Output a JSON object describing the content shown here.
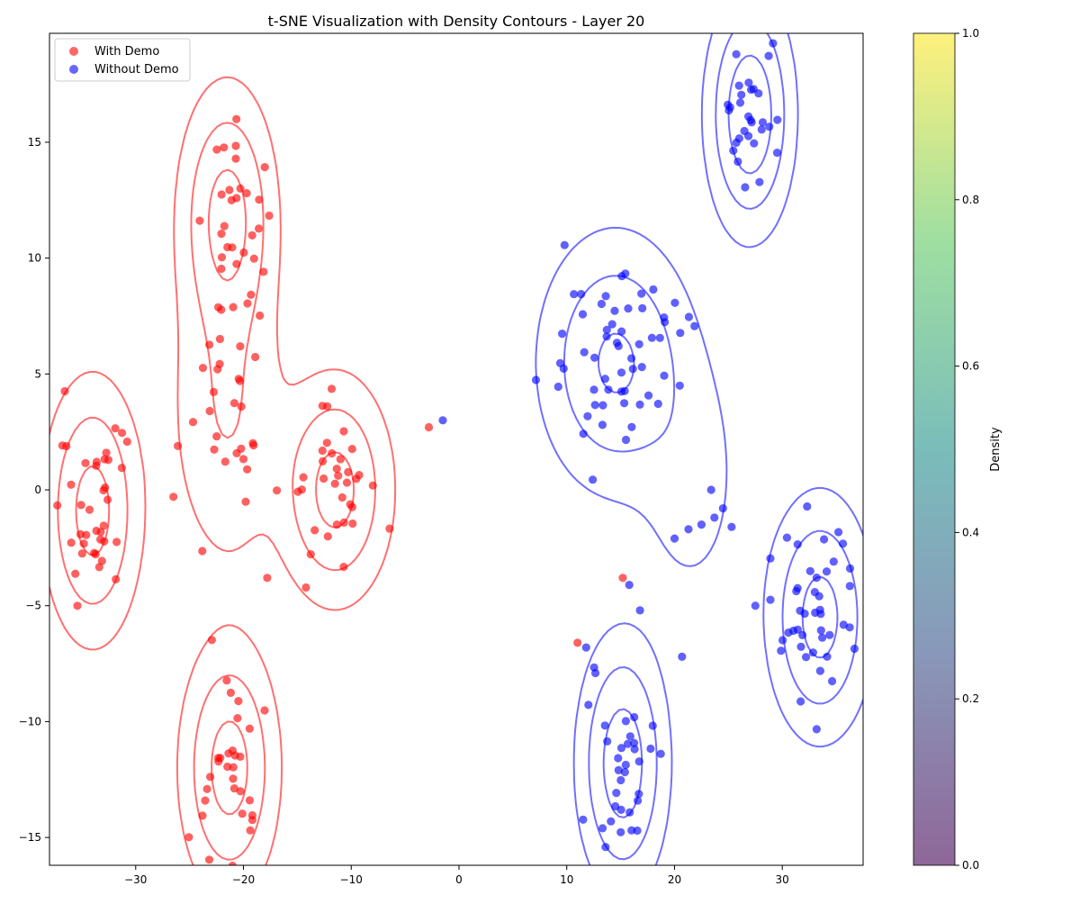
{
  "chart_data": {
    "type": "scatter",
    "title": "t-SNE Visualization with Density Contours - Layer 20",
    "xlabel": "",
    "ylabel": "",
    "xlim": [
      -38,
      37.5
    ],
    "ylim": [
      -16.2,
      19.7
    ],
    "x_ticks": [
      -30,
      -20,
      -10,
      0,
      10,
      20,
      30
    ],
    "y_ticks": [
      -15,
      -10,
      -5,
      0,
      5,
      10,
      15
    ],
    "grid": false,
    "legend": {
      "location": "upper-left"
    },
    "colorbar": {
      "label": "Density",
      "range": [
        0,
        1
      ],
      "ticks": [
        "0.0",
        "0.2",
        "0.4",
        "0.6",
        "0.8",
        "1.0"
      ]
    },
    "series": [
      {
        "name": "With Demo",
        "color": "#ff0000",
        "clusters": [
          {
            "cx": -21.5,
            "cy": 11.8,
            "sx": 1.7,
            "sy": 2.3,
            "n": 32
          },
          {
            "cx": -34.0,
            "cy": -0.9,
            "sx": 1.6,
            "sy": 2.4,
            "n": 38
          },
          {
            "cx": -11.5,
            "cy": 0.0,
            "sx": 2.2,
            "sy": 2.0,
            "n": 34
          },
          {
            "cx": -21.3,
            "cy": -12.0,
            "sx": 1.8,
            "sy": 2.4,
            "n": 32
          },
          {
            "cx": -21.5,
            "cy": 3.8,
            "sx": 2.4,
            "sy": 2.8,
            "n": 28
          }
        ],
        "extra_points": [
          [
            -2.8,
            2.7
          ],
          [
            15.2,
            -3.8
          ],
          [
            11.0,
            -6.6
          ],
          [
            -17.8,
            -3.8
          ],
          [
            -26.5,
            -0.3
          ]
        ]
      },
      {
        "name": "Without Demo",
        "color": "#0000ff",
        "clusters": [
          {
            "cx": 27.0,
            "cy": 16.2,
            "sx": 1.5,
            "sy": 2.0,
            "n": 32
          },
          {
            "cx": 14.5,
            "cy": 5.5,
            "sx": 3.2,
            "sy": 2.2,
            "n": 58
          },
          {
            "cx": 33.5,
            "cy": -5.5,
            "sx": 2.0,
            "sy": 2.1,
            "n": 44
          },
          {
            "cx": 15.2,
            "cy": -11.8,
            "sx": 1.6,
            "sy": 2.2,
            "n": 34
          }
        ],
        "extra_points": [
          [
            -1.5,
            3.0
          ],
          [
            23.4,
            0.0
          ],
          [
            24.5,
            -0.8
          ],
          [
            23.7,
            -1.2
          ],
          [
            22.5,
            -1.5
          ],
          [
            21.3,
            -1.7
          ],
          [
            25.3,
            -1.6
          ],
          [
            20.0,
            -2.1
          ],
          [
            20.7,
            -7.2
          ],
          [
            27.5,
            -5.0
          ],
          [
            16.8,
            -5.2
          ],
          [
            15.8,
            -4.1
          ],
          [
            11.8,
            -6.8
          ]
        ]
      }
    ],
    "contours": [
      {
        "series": "With Demo",
        "color": "#ff7070",
        "levels": [
          0.003,
          0.009,
          0.018,
          0.03
        ],
        "components": [
          {
            "cx": -21.5,
            "cy": 11.8,
            "sx": 2.4,
            "sy": 3.0,
            "w": 1.0
          },
          {
            "cx": -34.0,
            "cy": -0.9,
            "sx": 2.4,
            "sy": 3.0,
            "w": 1.0
          },
          {
            "cx": -11.5,
            "cy": 0.0,
            "sx": 2.8,
            "sy": 2.6,
            "w": 1.0
          },
          {
            "cx": -21.3,
            "cy": -12.0,
            "sx": 2.4,
            "sy": 2.9,
            "w": 1.0
          },
          {
            "cx": -21.5,
            "cy": 3.5,
            "sx": 3.0,
            "sy": 4.0,
            "w": 0.7
          }
        ]
      },
      {
        "series": "Without Demo",
        "color": "#7070ff",
        "levels": [
          0.003,
          0.009,
          0.018,
          0.03
        ],
        "components": [
          {
            "cx": 27.0,
            "cy": 16.2,
            "sx": 2.1,
            "sy": 2.7,
            "w": 1.0
          },
          {
            "cx": 14.5,
            "cy": 5.5,
            "sx": 3.8,
            "sy": 3.0,
            "w": 1.4
          },
          {
            "cx": 33.5,
            "cy": -5.5,
            "sx": 2.6,
            "sy": 2.8,
            "w": 1.0
          },
          {
            "cx": 15.2,
            "cy": -11.8,
            "sx": 2.2,
            "sy": 2.9,
            "w": 1.0
          },
          {
            "cx": 21.5,
            "cy": 0.5,
            "sx": 3.0,
            "sy": 3.5,
            "w": 0.35
          }
        ]
      }
    ]
  }
}
